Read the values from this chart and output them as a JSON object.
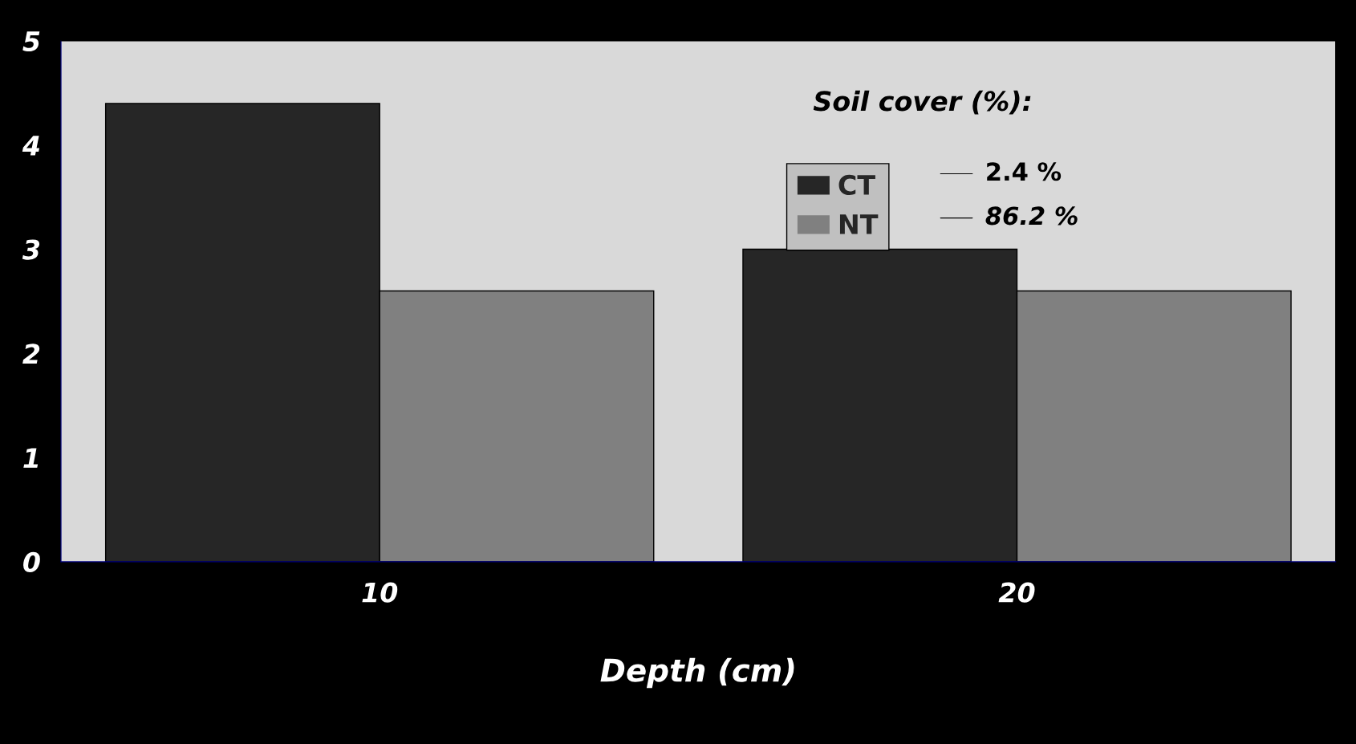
{
  "chart_data": {
    "type": "bar",
    "xlabel": "Depth (cm)",
    "legend_title": "Soil cover (%):",
    "categories": [
      "10",
      "20"
    ],
    "series": [
      {
        "name": "CT",
        "color": "#262626",
        "values": [
          4.4,
          3.0
        ]
      },
      {
        "name": "NT",
        "color": "#808080",
        "values": [
          2.6,
          2.6
        ]
      }
    ],
    "annotations": [
      "2.4 %",
      "86.2 %"
    ],
    "ylim": [
      0,
      5
    ],
    "yticks": [
      0,
      1,
      2,
      3,
      4,
      5
    ],
    "grid": false,
    "legend": "top right"
  }
}
